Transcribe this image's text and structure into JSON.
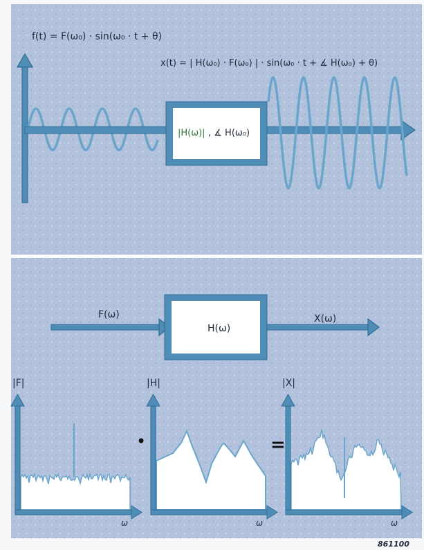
{
  "top": {
    "input_equation": "f(t) = F(ω₀) · sin(ω₀ · t + θ)",
    "output_equation": "x(t) = | H(ω₀) · F(ω₀) | · sin(ω₀ · t + ∡ H(ω₀) + θ)",
    "block_label_abs": "|H(ω)|",
    "block_label_phase": ", ∡ H(ω₀)"
  },
  "bottom": {
    "input_label": "F(ω)",
    "block_label": "H(ω)",
    "output_label": "X(ω)",
    "plots": [
      {
        "ylabel": "|F|",
        "xlabel": "ω"
      },
      {
        "ylabel": "|H|",
        "xlabel": "ω"
      },
      {
        "ylabel": "|X|",
        "xlabel": "ω"
      }
    ],
    "multiply_symbol": "•",
    "equals_symbol": "="
  },
  "figure_number": "861100",
  "colors": {
    "panel": "#aebfd9",
    "frame": "#4f8db7",
    "wave": "#6aa5cc",
    "block_bg": "#ffffff",
    "block_text_green": "#2e7a3c"
  }
}
